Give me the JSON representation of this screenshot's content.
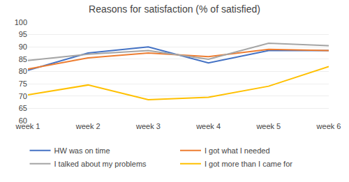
{
  "chart_data": {
    "type": "line",
    "title": "Reasons for satisfaction (% of satisfied)",
    "categories": [
      "week 1",
      "week 2",
      "week 3",
      "week 4",
      "week 5",
      "week 6"
    ],
    "series": [
      {
        "name": "HW was on time",
        "color": "#4472C4",
        "values": [
          80.5,
          87.5,
          90.0,
          83.5,
          88.5,
          88.5
        ]
      },
      {
        "name": "I got what I needed",
        "color": "#ED7D31",
        "values": [
          81.0,
          85.5,
          87.5,
          86.0,
          89.0,
          88.5
        ]
      },
      {
        "name": "I talked about my problems",
        "color": "#A5A5A5",
        "values": [
          84.5,
          87.0,
          88.5,
          85.0,
          91.5,
          90.5
        ]
      },
      {
        "name": "I got more than I came for",
        "color": "#FFC000",
        "values": [
          70.5,
          74.5,
          68.5,
          69.5,
          74.0,
          82.0
        ]
      }
    ],
    "ylim": [
      60,
      100
    ],
    "yticks": [
      60,
      65,
      70,
      75,
      80,
      85,
      90,
      95,
      100
    ],
    "grid": true,
    "legend": "bottom"
  }
}
